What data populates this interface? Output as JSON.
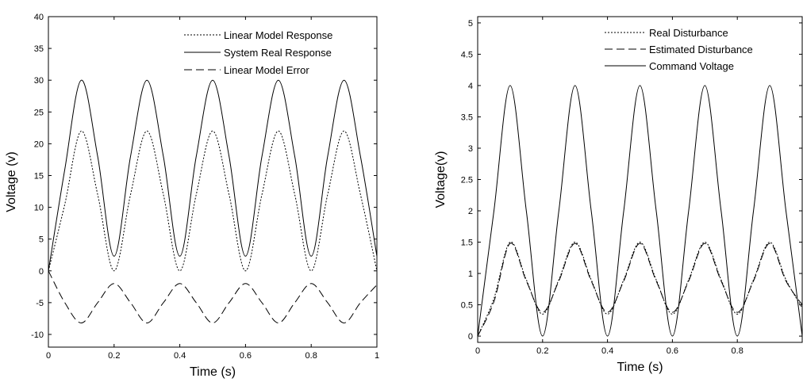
{
  "chart_data": [
    {
      "type": "line",
      "title": "",
      "xlabel": "Time (s)",
      "ylabel": "Voltage (v)",
      "xlim": [
        0,
        1
      ],
      "ylim": [
        -12,
        40
      ],
      "xticks": [
        0,
        0.2,
        0.4,
        0.6,
        0.8,
        1
      ],
      "xtick_labels": [
        "0",
        "0.2",
        "0.4",
        "0.6",
        "0.8",
        "1"
      ],
      "yticks": [
        -10,
        -5,
        0,
        5,
        10,
        15,
        20,
        25,
        30,
        35,
        40
      ],
      "ytick_labels": [
        "-10",
        "-5",
        "0",
        "5",
        "10",
        "15",
        "20",
        "25",
        "30",
        "35",
        "40"
      ],
      "grid": false,
      "legend_position": "top-right",
      "x": [
        0,
        0.05,
        0.1,
        0.15,
        0.2,
        0.25,
        0.3,
        0.35,
        0.4,
        0.45,
        0.5,
        0.55,
        0.6,
        0.65,
        0.7,
        0.75,
        0.8,
        0.85,
        0.9,
        0.95,
        1.0
      ],
      "series": [
        {
          "name": "Linear Model Response",
          "style": "dotted",
          "values": [
            0,
            10.5,
            22,
            12,
            0,
            12,
            22,
            12,
            0,
            12,
            22,
            12,
            0,
            12,
            22,
            12,
            0,
            12,
            22,
            12,
            0
          ]
        },
        {
          "name": "System Real Response",
          "style": "solid",
          "values": [
            0,
            16,
            30,
            18,
            2.3,
            18,
            30,
            18,
            2.3,
            18,
            30,
            18,
            2.3,
            18,
            30,
            18,
            2.3,
            18,
            30,
            18,
            2.3
          ]
        },
        {
          "name": "Linear Model Error",
          "style": "dashed",
          "values": [
            0,
            -5,
            -8.2,
            -5,
            -2,
            -5,
            -8.2,
            -5,
            -2,
            -5,
            -8.2,
            -5,
            -2,
            -5,
            -8.2,
            -5,
            -2,
            -5,
            -8.2,
            -5,
            -2.2
          ]
        }
      ]
    },
    {
      "type": "line",
      "title": "",
      "xlabel": "Time (s)",
      "ylabel": "Voltage(v)",
      "xlim": [
        0,
        1
      ],
      "ylim": [
        -0.1,
        5.1
      ],
      "xticks": [
        0,
        0.2,
        0.4,
        0.6,
        0.8
      ],
      "xtick_labels": [
        "0",
        "0.2",
        "0.4",
        "0.6",
        "0.8"
      ],
      "yticks": [
        0,
        0.5,
        1,
        1.5,
        2,
        2.5,
        3,
        3.5,
        4,
        4.5,
        5
      ],
      "ytick_labels": [
        "0",
        "0.5",
        "1",
        "1.5",
        "2",
        "2.5",
        "3",
        "3.5",
        "4",
        "4.5",
        "5"
      ],
      "grid": false,
      "legend_position": "top-right",
      "x": [
        0,
        0.05,
        0.1,
        0.15,
        0.2,
        0.25,
        0.3,
        0.35,
        0.4,
        0.45,
        0.5,
        0.55,
        0.6,
        0.65,
        0.7,
        0.75,
        0.8,
        0.85,
        0.9,
        0.95,
        1.0
      ],
      "series": [
        {
          "name": "Real Disturbance",
          "style": "dotted",
          "values": [
            0,
            0.6,
            1.5,
            0.9,
            0.35,
            0.9,
            1.5,
            0.9,
            0.35,
            0.9,
            1.5,
            0.9,
            0.35,
            0.9,
            1.5,
            0.9,
            0.35,
            0.9,
            1.5,
            0.9,
            0.45
          ]
        },
        {
          "name": "Estimated Disturbance",
          "style": "dashed",
          "values": [
            0,
            0.55,
            1.48,
            0.88,
            0.38,
            0.88,
            1.48,
            0.88,
            0.38,
            0.88,
            1.48,
            0.88,
            0.38,
            0.88,
            1.48,
            0.88,
            0.38,
            0.88,
            1.48,
            0.88,
            0.5
          ]
        },
        {
          "name": "Command Voltage",
          "style": "solid",
          "values": [
            0,
            2,
            4,
            2,
            0,
            2,
            4,
            2,
            0,
            2,
            4,
            2,
            0,
            2,
            4,
            2,
            0,
            2,
            4,
            2,
            0
          ]
        }
      ]
    }
  ]
}
